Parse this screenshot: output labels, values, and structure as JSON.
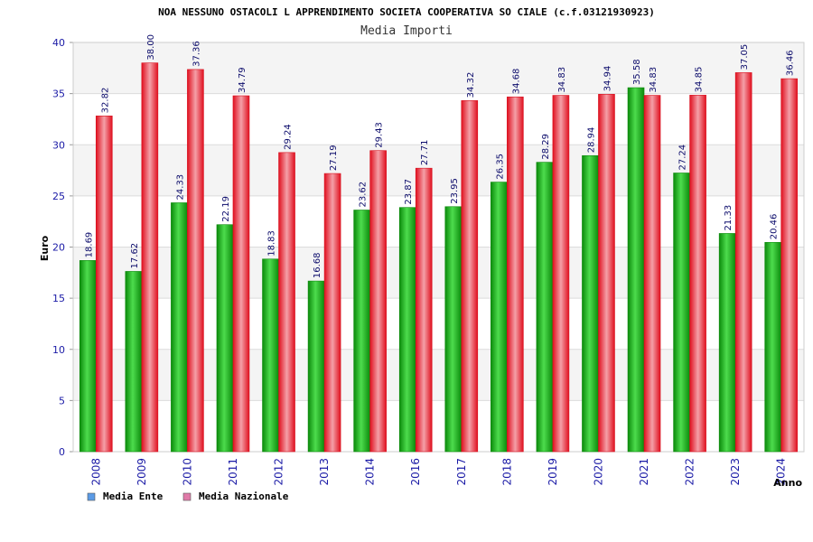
{
  "chart_data": {
    "type": "bar",
    "title": "NOA NESSUNO OSTACOLI L APPRENDIMENTO SOCIETA COOPERATIVA SO CIALE (c.f.03121930923)",
    "subtitle": "Media Importi",
    "xlabel": "Anno",
    "ylabel": "Euro",
    "ylim": [
      0,
      40
    ],
    "yticks": [
      0,
      5,
      10,
      15,
      20,
      25,
      30,
      35,
      40
    ],
    "grid": true,
    "legend_position": "bottom-left",
    "categories": [
      "2008",
      "2009",
      "2010",
      "2011",
      "2012",
      "2013",
      "2014",
      "2016",
      "2017",
      "2018",
      "2019",
      "2020",
      "2021",
      "2022",
      "2023",
      "2024"
    ],
    "series": [
      {
        "name": "Media Ente",
        "color": "#22b422",
        "legend_color": "#5b9be6",
        "values": [
          18.69,
          17.62,
          24.33,
          22.19,
          18.83,
          16.68,
          23.62,
          23.87,
          23.95,
          26.35,
          28.29,
          28.94,
          35.58,
          27.24,
          21.33,
          20.46
        ],
        "labels": [
          "18.69",
          "17.62",
          "24.33",
          "22.19",
          "18.83",
          "16.68",
          "23.62",
          "23.87",
          "23.95",
          "26.35",
          "28.29",
          "28.94",
          "35.58",
          "27.24",
          "21.33",
          "20.46"
        ]
      },
      {
        "name": "Media Nazionale",
        "color": "#e8192c",
        "legend_color": "#e07aa8",
        "values": [
          32.82,
          38.0,
          37.36,
          34.79,
          29.24,
          27.19,
          29.43,
          27.71,
          34.32,
          34.68,
          34.83,
          34.94,
          34.83,
          34.85,
          37.05,
          36.46
        ],
        "labels": [
          "32.82",
          "38.00",
          "37.36",
          "34.79",
          "29.24",
          "27.19",
          "29.43",
          "27.71",
          "34.32",
          "34.68",
          "34.83",
          "34.94",
          "34.83",
          "34.85",
          "37.05",
          "36.46"
        ]
      }
    ]
  }
}
